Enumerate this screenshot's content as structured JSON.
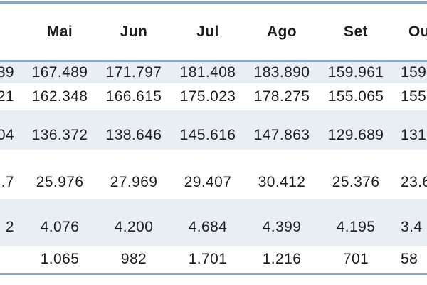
{
  "table": {
    "description_colors": {
      "border_blue": "#87a5c6",
      "row_shading": "#e9edf4",
      "text": "#1d1d1d"
    },
    "columns": [
      "",
      "Mai",
      "Jun",
      "Jul",
      "Ago",
      "Set",
      "Ou"
    ],
    "rows": [
      {
        "cells": [
          "39",
          "167.489",
          "171.797",
          "181.408",
          "183.890",
          "159.961",
          "159."
        ]
      },
      {
        "cells": [
          "21",
          "162.348",
          "166.615",
          "175.023",
          "178.275",
          "155.065",
          "155."
        ]
      },
      {
        "cells": [
          "04",
          "136.372",
          "138.646",
          "145.616",
          "147.863",
          "129.689",
          "131."
        ]
      },
      {
        "cells": [
          ".7",
          "25.976",
          "27.969",
          "29.407",
          "30.412",
          "25.376",
          "23.6"
        ]
      },
      {
        "cells": [
          "2",
          "4.076",
          "4.200",
          "4.684",
          "4.399",
          "4.195",
          "3.4"
        ]
      },
      {
        "cells": [
          "",
          "1.065",
          "982",
          "1.701",
          "1.216",
          "701",
          "58"
        ]
      }
    ]
  }
}
